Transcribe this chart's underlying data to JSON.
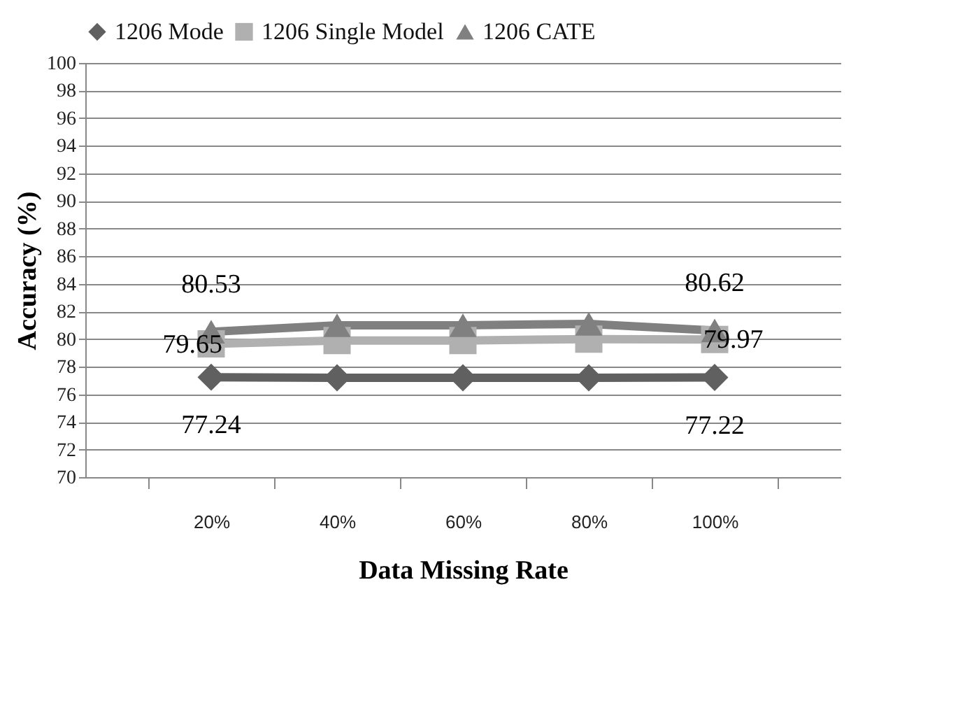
{
  "chart_data": {
    "type": "line",
    "xlabel": "Data Missing Rate",
    "ylabel": "Accuracy (%)",
    "categories": [
      "20%",
      "40%",
      "60%",
      "80%",
      "100%"
    ],
    "series": [
      {
        "name": "1206 Mode",
        "color": "#606060",
        "marker": "diamond",
        "values": [
          77.24,
          77.2,
          77.2,
          77.2,
          77.22
        ],
        "value_labels": [
          "77.24",
          null,
          null,
          null,
          "77.22"
        ]
      },
      {
        "name": "1206 Single Model",
        "color": "#b0b0b0",
        "marker": "square",
        "values": [
          79.65,
          79.9,
          79.9,
          80.0,
          79.97
        ],
        "value_labels": [
          "79.65",
          null,
          null,
          null,
          "79.97"
        ]
      },
      {
        "name": "1206 CATE",
        "color": "#808080",
        "marker": "triangle",
        "values": [
          80.53,
          81.0,
          81.0,
          81.1,
          80.62
        ],
        "value_labels": [
          "80.53",
          null,
          null,
          null,
          "80.62"
        ]
      }
    ],
    "ylim": [
      70,
      100
    ],
    "yticks": [
      70,
      72,
      74,
      76,
      78,
      80,
      82,
      84,
      86,
      88,
      90,
      92,
      94,
      96,
      98,
      100
    ],
    "grid": "y",
    "legend": "top"
  }
}
